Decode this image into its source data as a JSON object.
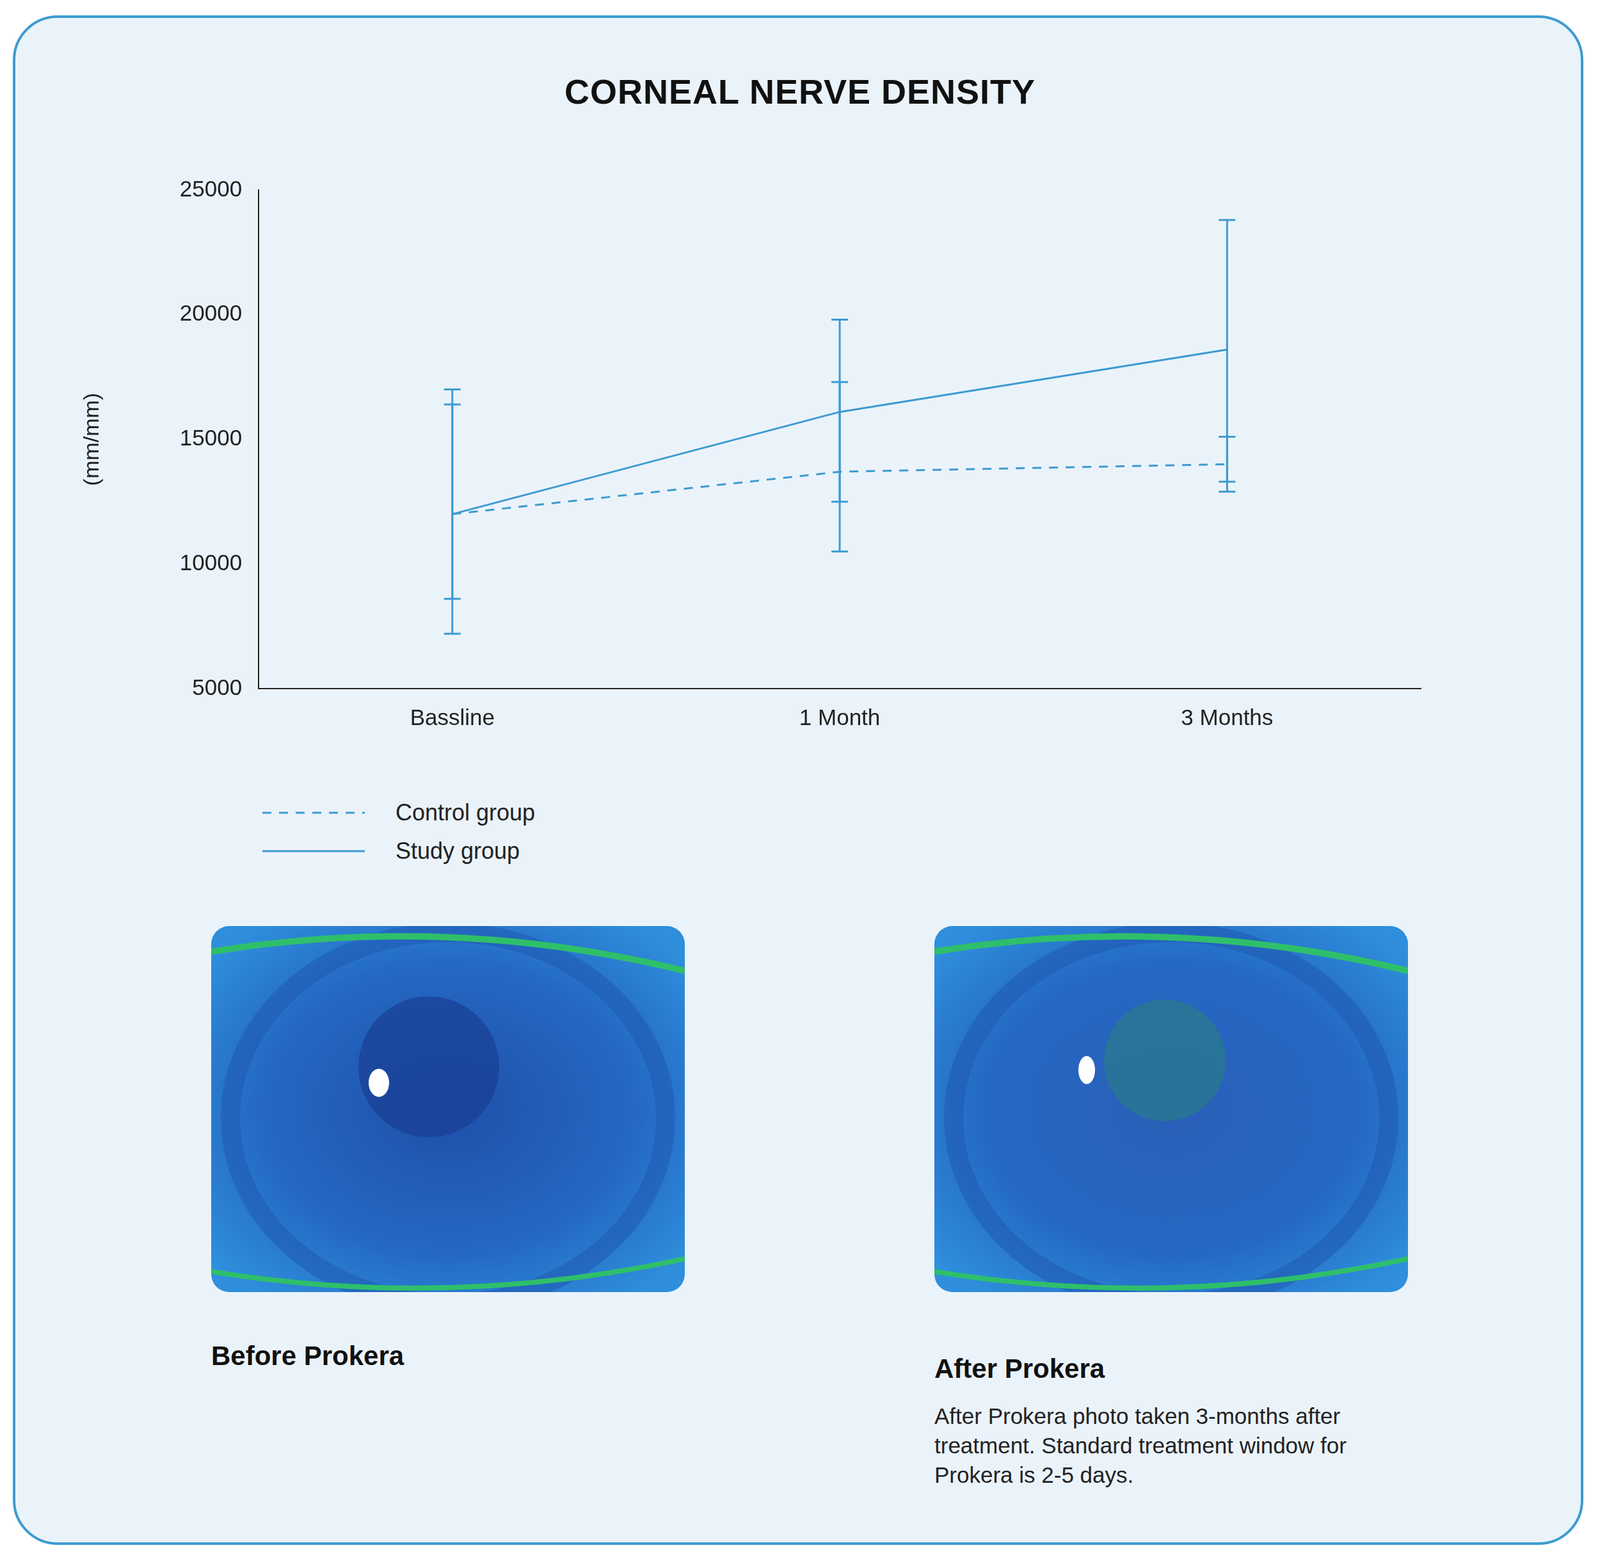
{
  "chart_data": {
    "type": "line",
    "title": "CORNEAL NERVE DENSITY",
    "ylabel": "(mm/mm)",
    "categories": [
      "Bassline",
      "1 Month",
      "3 Months"
    ],
    "series": [
      {
        "name": "Control group",
        "color": "#3d9bd1",
        "line_style": "dashed",
        "values": [
          12000,
          13700,
          14000
        ],
        "error_low": [
          8600,
          12500,
          12900
        ],
        "error_high": [
          16400,
          17300,
          15100
        ]
      },
      {
        "name": "Study group",
        "color": "#3d9bd1",
        "line_style": "solid",
        "values": [
          12000,
          16100,
          18600
        ],
        "error_low": [
          7200,
          10500,
          13300
        ],
        "error_high": [
          17000,
          19800,
          23800
        ]
      }
    ],
    "ylim": [
      5000,
      25000
    ],
    "yticks": [
      5000,
      10000,
      15000,
      20000,
      25000
    ],
    "grid": false,
    "legend": "bottom"
  },
  "photos": [
    {
      "caption": "Before Prokera"
    },
    {
      "caption": "After Prokera",
      "note": "After Prokera photo taken 3-months after treatment. Standard treatment window for Prokera is 2-5 days."
    }
  ]
}
